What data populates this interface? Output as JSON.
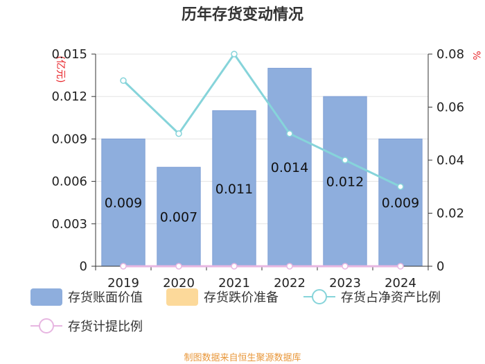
{
  "chart_data": {
    "type": "bar",
    "title": "历年存货变动情况",
    "categories": [
      "2019",
      "2020",
      "2021",
      "2022",
      "2023",
      "2024"
    ],
    "y_left": {
      "unit": "亿元",
      "range": [
        0,
        0.015
      ],
      "ticks": [
        "0",
        "0.003",
        "0.006",
        "0.009",
        "0.012",
        "0.015"
      ]
    },
    "y_right": {
      "unit": "%",
      "range": [
        0,
        0.08
      ],
      "ticks": [
        "0",
        "0.02",
        "0.04",
        "0.06",
        "0.08"
      ]
    },
    "series": [
      {
        "name": "存货账面价值",
        "kind": "bar",
        "axis": "left",
        "values": [
          0.009,
          0.007,
          0.011,
          0.014,
          0.012,
          0.009
        ],
        "labels": [
          "0.009",
          "0.007",
          "0.011",
          "0.014",
          "0.012",
          "0.009"
        ]
      },
      {
        "name": "存货跌价准备",
        "kind": "bar",
        "axis": "left",
        "values": [
          0,
          0,
          0,
          0,
          0,
          0
        ]
      },
      {
        "name": "存货占净资产比例",
        "kind": "line",
        "axis": "right",
        "values": [
          0.07,
          0.05,
          0.08,
          0.05,
          0.04,
          0.03
        ]
      },
      {
        "name": "存货计提比例",
        "kind": "line",
        "axis": "right",
        "values": [
          0,
          0,
          0,
          0,
          0,
          0
        ]
      }
    ],
    "colors": {
      "bar": "#8eaedd",
      "bar_stroke": "#7f9fd6",
      "reserve": "#fcd99a",
      "ratio_line": "#86d4da",
      "provision_line": "#e7b6e1",
      "unit": "#e8262b"
    },
    "grid": true,
    "legend_position": "bottom-left"
  },
  "source_note": "制图数据来自恒生聚源数据库"
}
